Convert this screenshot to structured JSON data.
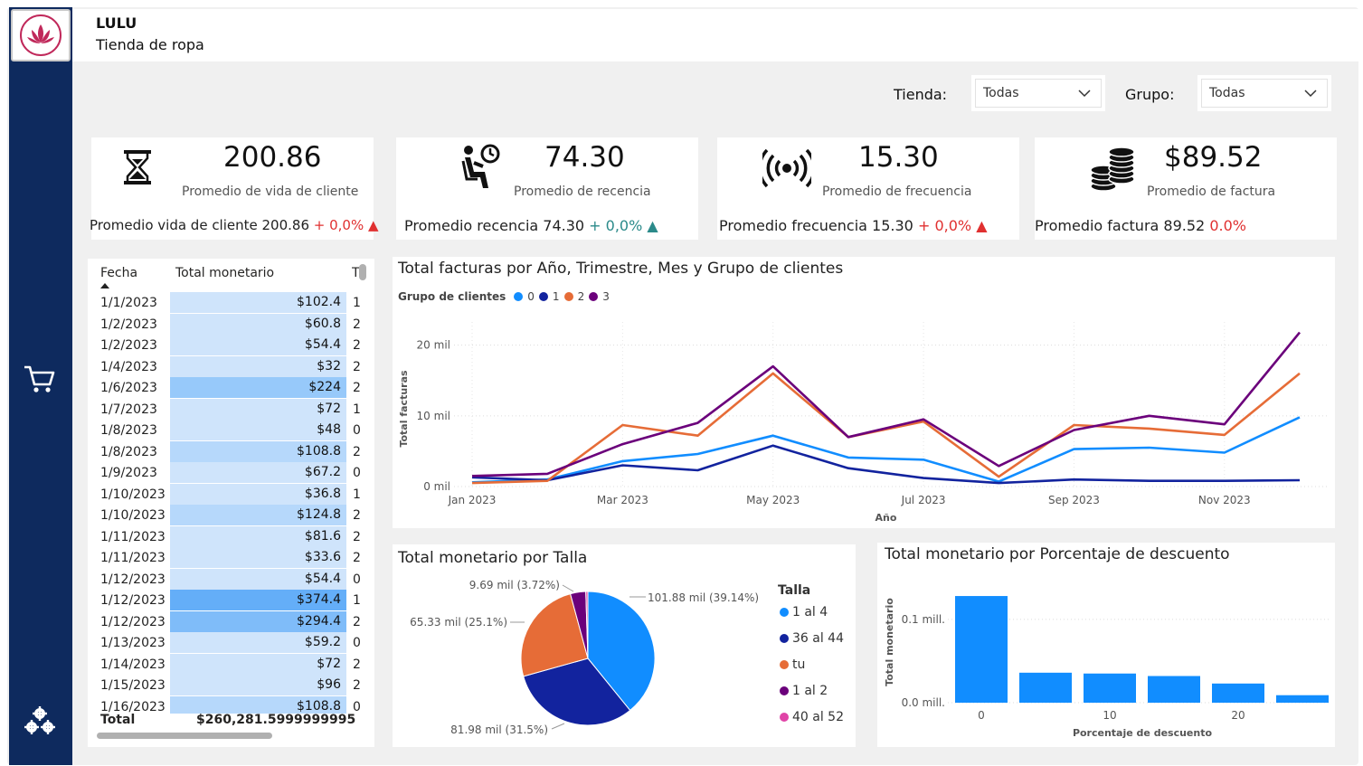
{
  "header": {
    "title": "LULU",
    "subtitle": "Tienda de ropa"
  },
  "filters": {
    "tienda_label": "Tienda:",
    "tienda_value": "Todas",
    "grupo_label": "Grupo:",
    "grupo_value": "Todas"
  },
  "sidebar": {
    "items": [
      {
        "icon": "shopping-cart-icon"
      },
      {
        "icon": "gears-icon"
      }
    ]
  },
  "kpis": [
    {
      "icon": "hourglass-icon",
      "value": "200.86",
      "label": "Promedio de vida de cliente",
      "sub_text": "Promedio vida de cliente 200.86",
      "delta": "+ 0,0%",
      "trend": "▲",
      "color": "#e03030"
    },
    {
      "icon": "waiting-person-icon",
      "value": "74.30",
      "label": "Promedio de recencia",
      "sub_text": "Promedio recencia 74.30",
      "delta": "+ 0,0%",
      "trend": "▲",
      "color": "#2b8a8a"
    },
    {
      "icon": "broadcast-icon",
      "value": "15.30",
      "label": "Promedio de frecuencia",
      "sub_text": "Promedio frecuencia 15.30",
      "delta": "+ 0,0%",
      "trend": "▲",
      "color": "#e03030"
    },
    {
      "icon": "coins-icon",
      "value": "$89.52",
      "label": "Promedio de factura",
      "sub_text": "Promedio factura 89.52",
      "delta": "0.0%",
      "trend": "",
      "color": "#e03030"
    }
  ],
  "table": {
    "columns": [
      "Fecha",
      "Total monetario",
      "T"
    ],
    "rows": [
      {
        "fecha": "1/1/2023",
        "monto": "$102.4",
        "t": "1",
        "v": 102.4
      },
      {
        "fecha": "1/2/2023",
        "monto": "$60.8",
        "t": "2",
        "v": 60.8
      },
      {
        "fecha": "1/2/2023",
        "monto": "$54.4",
        "t": "2",
        "v": 54.4
      },
      {
        "fecha": "1/4/2023",
        "monto": "$32",
        "t": "2",
        "v": 32
      },
      {
        "fecha": "1/6/2023",
        "monto": "$224",
        "t": "2",
        "v": 224
      },
      {
        "fecha": "1/7/2023",
        "monto": "$72",
        "t": "1",
        "v": 72
      },
      {
        "fecha": "1/8/2023",
        "monto": "$48",
        "t": "0",
        "v": 48
      },
      {
        "fecha": "1/8/2023",
        "monto": "$108.8",
        "t": "2",
        "v": 108.8
      },
      {
        "fecha": "1/9/2023",
        "monto": "$67.2",
        "t": "0",
        "v": 67.2
      },
      {
        "fecha": "1/10/2023",
        "monto": "$36.8",
        "t": "1",
        "v": 36.8
      },
      {
        "fecha": "1/10/2023",
        "monto": "$124.8",
        "t": "2",
        "v": 124.8
      },
      {
        "fecha": "1/11/2023",
        "monto": "$81.6",
        "t": "2",
        "v": 81.6
      },
      {
        "fecha": "1/11/2023",
        "monto": "$33.6",
        "t": "2",
        "v": 33.6
      },
      {
        "fecha": "1/12/2023",
        "monto": "$54.4",
        "t": "0",
        "v": 54.4
      },
      {
        "fecha": "1/12/2023",
        "monto": "$374.4",
        "t": "1",
        "v": 374.4
      },
      {
        "fecha": "1/12/2023",
        "monto": "$294.4",
        "t": "2",
        "v": 294.4
      },
      {
        "fecha": "1/13/2023",
        "monto": "$59.2",
        "t": "0",
        "v": 59.2
      },
      {
        "fecha": "1/14/2023",
        "monto": "$72",
        "t": "2",
        "v": 72
      },
      {
        "fecha": "1/15/2023",
        "monto": "$96",
        "t": "2",
        "v": 96
      },
      {
        "fecha": "1/16/2023",
        "monto": "$108.8",
        "t": "0",
        "v": 108.8
      }
    ],
    "total_label": "Total",
    "total_value": "$260,281.5999999995"
  },
  "line_chart_title": "Total facturas por Año, Trimestre, Mes y Grupo de clientes",
  "line_legend_title": "Grupo de clientes",
  "pie_title": "Total monetario por Talla",
  "pie_legend_title": "Talla",
  "bar_title": "Total monetario por Porcentaje de descuento",
  "chart_data": [
    {
      "type": "line",
      "title": "Total facturas por Año, Trimestre, Mes y Grupo de clientes",
      "xlabel": "Año",
      "ylabel": "Total facturas",
      "x": [
        "2023-01",
        "2023-02",
        "2023-03",
        "2023-04",
        "2023-05",
        "2023-06",
        "2023-07",
        "2023-08",
        "2023-09",
        "2023-10",
        "2023-11",
        "2023-12"
      ],
      "x_ticks": [
        "Jan 2023",
        "Mar 2023",
        "May 2023",
        "Jul 2023",
        "Sep 2023",
        "Nov 2023"
      ],
      "y_ticks": [
        "0 mil",
        "10 mil",
        "20 mil"
      ],
      "ylim": [
        0,
        22000
      ],
      "series": [
        {
          "name": "0",
          "color": "#118dff",
          "values": [
            600,
            1000,
            3600,
            4600,
            7200,
            4100,
            3800,
            700,
            5300,
            5500,
            4800,
            9800
          ]
        },
        {
          "name": "1",
          "color": "#12239e",
          "values": [
            1300,
            900,
            3000,
            2300,
            5800,
            2600,
            1200,
            500,
            1000,
            800,
            800,
            900
          ]
        },
        {
          "name": "2",
          "color": "#e66c37",
          "values": [
            500,
            800,
            8700,
            7200,
            16000,
            7000,
            9200,
            1400,
            8700,
            8200,
            7300,
            16000
          ]
        },
        {
          "name": "3",
          "color": "#6b007b",
          "values": [
            1500,
            1800,
            6000,
            9000,
            17000,
            7000,
            9500,
            2900,
            8000,
            10000,
            8800,
            21800
          ]
        }
      ]
    },
    {
      "type": "pie",
      "title": "Total monetario por Talla",
      "categories": [
        "1 al 4",
        "36 al 44",
        "tu",
        "1 al 2",
        "40 al 52"
      ],
      "values": [
        101.88,
        81.98,
        65.33,
        9.69,
        1.3
      ],
      "labels": [
        "101.88 mil (39.14%)",
        "81.98 mil (31.5%)",
        "65.33 mil (25.1%)",
        "9.69 mil (3.72%)",
        ""
      ],
      "colors": [
        "#118dff",
        "#12239e",
        "#e66c37",
        "#6b007b",
        "#e044a7"
      ]
    },
    {
      "type": "bar",
      "title": "Total monetario por Porcentaje de descuento",
      "xlabel": "Porcentaje de descuento",
      "ylabel": "Total monetario",
      "x": [
        0,
        5,
        10,
        15,
        20,
        25
      ],
      "x_ticks": [
        "0",
        "10",
        "20"
      ],
      "y_ticks": [
        "0.0 mill.",
        "0.1 mill."
      ],
      "values": [
        0.128,
        0.036,
        0.035,
        0.032,
        0.023,
        0.009
      ],
      "ylim": [
        0,
        0.14
      ],
      "color": "#118dff"
    }
  ]
}
